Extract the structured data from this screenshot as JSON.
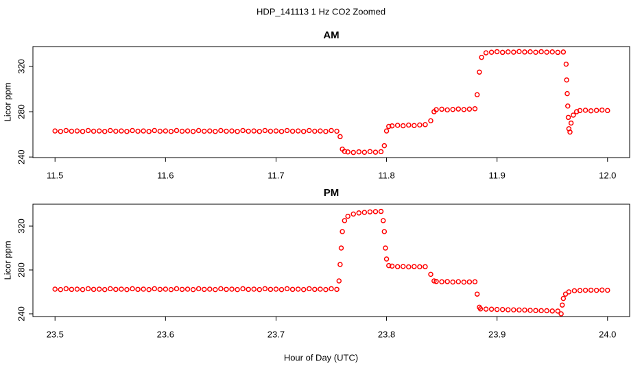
{
  "title": "HDP_141113  1 Hz CO2 Zoomed",
  "x_label": "Hour of Day (UTC)",
  "chart_data": [
    {
      "type": "scatter",
      "title": "AM",
      "y_label": "Licor ppm",
      "color": "#ff0000",
      "xlim": [
        11.48,
        12.02
      ],
      "ylim": [
        239.5,
        337.5
      ],
      "xticks": [
        11.5,
        11.6,
        11.7,
        11.8,
        11.9,
        {
          "value": 12,
          "label": "12.0"
        }
      ],
      "yticks": [
        240,
        280,
        320
      ],
      "x": [
        11.5,
        11.505,
        11.51,
        11.515,
        11.52,
        11.525,
        11.53,
        11.535,
        11.54,
        11.545,
        11.55,
        11.555,
        11.56,
        11.565,
        11.57,
        11.575,
        11.58,
        11.585,
        11.59,
        11.595,
        11.6,
        11.605,
        11.61,
        11.615,
        11.62,
        11.625,
        11.63,
        11.635,
        11.64,
        11.645,
        11.65,
        11.655,
        11.66,
        11.665,
        11.67,
        11.675,
        11.68,
        11.685,
        11.69,
        11.695,
        11.7,
        11.705,
        11.71,
        11.715,
        11.72,
        11.725,
        11.73,
        11.735,
        11.74,
        11.745,
        11.75,
        11.755,
        11.758,
        11.76,
        11.762,
        11.765,
        11.77,
        11.775,
        11.78,
        11.785,
        11.79,
        11.795,
        11.798,
        11.8,
        11.802,
        11.805,
        11.81,
        11.815,
        11.82,
        11.825,
        11.83,
        11.835,
        11.84,
        11.843,
        11.845,
        11.85,
        11.855,
        11.86,
        11.865,
        11.87,
        11.875,
        11.88,
        11.882,
        11.884,
        11.886,
        11.89,
        11.895,
        11.9,
        11.905,
        11.91,
        11.915,
        11.92,
        11.925,
        11.93,
        11.935,
        11.94,
        11.945,
        11.95,
        11.955,
        11.96,
        11.9625,
        11.963,
        11.9635,
        11.964,
        11.9645,
        11.965,
        11.966,
        11.967,
        11.969,
        11.972,
        11.975,
        11.98,
        11.985,
        11.99,
        11.995,
        12.0
      ],
      "values": [
        263,
        262.6,
        263.4,
        262.8,
        263,
        262.6,
        263.4,
        262.8,
        263,
        262.6,
        263.4,
        262.8,
        263,
        262.6,
        263.4,
        262.8,
        263,
        262.6,
        263.4,
        262.8,
        263,
        262.6,
        263.4,
        262.8,
        263,
        262.6,
        263.4,
        262.8,
        263,
        262.6,
        263.4,
        262.8,
        263,
        262.6,
        263.4,
        262.8,
        263,
        262.6,
        263.4,
        262.8,
        263,
        262.6,
        263.4,
        262.8,
        263,
        262.6,
        263.4,
        262.8,
        263,
        262.6,
        263.4,
        262.8,
        258,
        247,
        245,
        244.5,
        244,
        244.6,
        244.2,
        244.8,
        244.3,
        244.7,
        250,
        263,
        267,
        267.5,
        268,
        267.6,
        268.2,
        267.8,
        268.3,
        268.6,
        272,
        280,
        281.8,
        282.2,
        281.6,
        282,
        282.4,
        281.9,
        282.3,
        282.6,
        295,
        315,
        328,
        332,
        332.5,
        333,
        332.4,
        332.8,
        332.6,
        333.1,
        332.7,
        332.9,
        332.5,
        333,
        332.6,
        332.8,
        332.4,
        332.7,
        322,
        308,
        296,
        285,
        275,
        265,
        262,
        270,
        277,
        280,
        281,
        281.3,
        280.8,
        281.2,
        281.5,
        281
      ]
    },
    {
      "type": "scatter",
      "title": "PM",
      "y_label": "Licor ppm",
      "color": "#ff0000",
      "xlim": [
        23.48,
        24.02
      ],
      "ylim": [
        237.5,
        340
      ],
      "xticks": [
        23.5,
        23.6,
        23.7,
        23.8,
        23.9,
        {
          "value": 24,
          "label": "24.0"
        }
      ],
      "yticks": [
        240,
        280,
        320
      ],
      "x": [
        23.5,
        23.505,
        23.51,
        23.515,
        23.52,
        23.525,
        23.53,
        23.535,
        23.54,
        23.545,
        23.55,
        23.555,
        23.56,
        23.565,
        23.57,
        23.575,
        23.58,
        23.585,
        23.59,
        23.595,
        23.6,
        23.605,
        23.61,
        23.615,
        23.62,
        23.625,
        23.63,
        23.635,
        23.64,
        23.645,
        23.65,
        23.655,
        23.66,
        23.665,
        23.67,
        23.675,
        23.68,
        23.685,
        23.69,
        23.695,
        23.7,
        23.705,
        23.71,
        23.715,
        23.72,
        23.725,
        23.73,
        23.735,
        23.74,
        23.745,
        23.75,
        23.755,
        23.757,
        23.758,
        23.759,
        23.76,
        23.762,
        23.765,
        23.77,
        23.775,
        23.78,
        23.785,
        23.79,
        23.795,
        23.797,
        23.798,
        23.799,
        23.8,
        23.802,
        23.805,
        23.81,
        23.815,
        23.82,
        23.825,
        23.83,
        23.835,
        23.84,
        23.843,
        23.845,
        23.85,
        23.855,
        23.86,
        23.865,
        23.87,
        23.875,
        23.88,
        23.882,
        23.884,
        23.885,
        23.89,
        23.895,
        23.9,
        23.905,
        23.91,
        23.915,
        23.92,
        23.925,
        23.93,
        23.935,
        23.94,
        23.945,
        23.95,
        23.955,
        23.958,
        23.959,
        23.96,
        23.962,
        23.965,
        23.97,
        23.975,
        23.98,
        23.985,
        23.99,
        23.995,
        24.0
      ],
      "values": [
        262.5,
        262.1,
        262.9,
        262.3,
        262.5,
        262.1,
        262.9,
        262.3,
        262.5,
        262.1,
        262.9,
        262.3,
        262.5,
        262.1,
        262.9,
        262.3,
        262.5,
        262.1,
        262.9,
        262.3,
        262.5,
        262.1,
        262.9,
        262.3,
        262.5,
        262.1,
        262.9,
        262.3,
        262.5,
        262.1,
        262.9,
        262.3,
        262.5,
        262.1,
        262.9,
        262.3,
        262.5,
        262.1,
        262.9,
        262.3,
        262.5,
        262.1,
        262.9,
        262.3,
        262.5,
        262.1,
        262.9,
        262.3,
        262.5,
        262.1,
        262.9,
        262.3,
        270,
        285,
        300,
        315,
        325,
        329,
        331,
        332,
        332.5,
        333,
        333.2,
        333.4,
        325,
        315,
        300,
        290,
        284,
        283.5,
        283,
        283.2,
        282.8,
        283.1,
        282.9,
        283,
        276,
        270,
        269.5,
        269.2,
        269.4,
        269,
        269.3,
        268.9,
        269.1,
        269.2,
        258,
        246,
        244.5,
        244.3,
        244.2,
        244,
        243.9,
        243.7,
        243.6,
        243.5,
        243.4,
        243.2,
        243,
        242.9,
        242.8,
        242.6,
        242.5,
        240,
        248,
        254,
        258,
        260,
        261,
        261.3,
        261.5,
        261.6,
        261.4,
        261.7,
        261.5
      ]
    }
  ]
}
